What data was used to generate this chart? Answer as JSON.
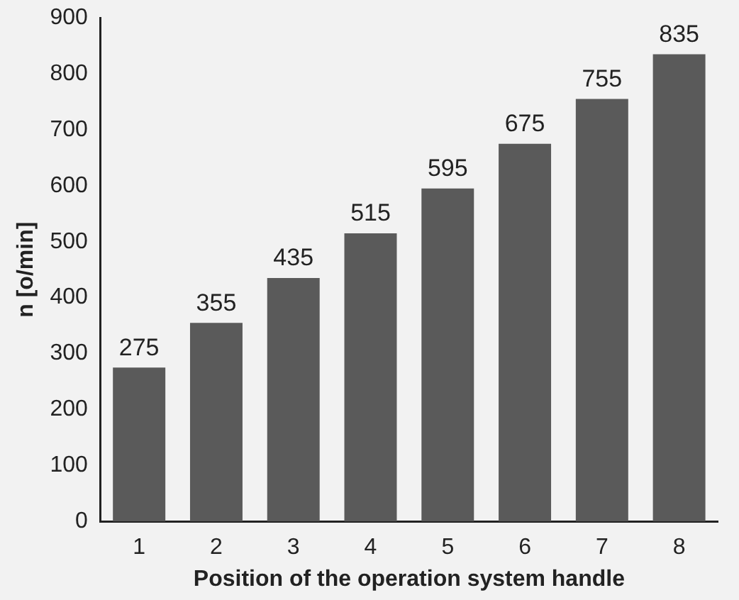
{
  "chart_data": {
    "type": "bar",
    "xlabel": "Position of the operation system handle",
    "ylabel": "n [o/min]",
    "categories": [
      "1",
      "2",
      "3",
      "4",
      "5",
      "6",
      "7",
      "8"
    ],
    "values": [
      275,
      355,
      435,
      515,
      595,
      675,
      755,
      835
    ],
    "color": "#5a5a5a",
    "ylim": [
      0,
      900
    ],
    "yticks": [
      0,
      100,
      200,
      300,
      400,
      500,
      600,
      700,
      800,
      900
    ],
    "grid": false,
    "legend": false,
    "data_labels": true
  }
}
